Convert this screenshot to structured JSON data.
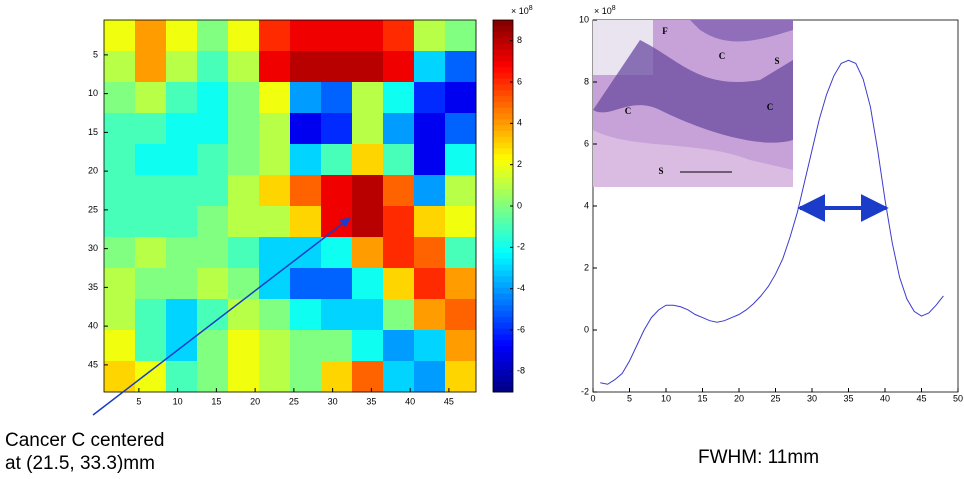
{
  "chart_data": [
    {
      "type": "heatmap",
      "xlim": [
        0.5,
        48.5
      ],
      "ylim": [
        48.5,
        0.5
      ],
      "xticks": [
        5,
        10,
        15,
        20,
        25,
        30,
        35,
        40,
        45
      ],
      "yticks": [
        5,
        10,
        15,
        20,
        25,
        30,
        35,
        40,
        45
      ],
      "z": [
        [
          2,
          4,
          2,
          0,
          2,
          6,
          7,
          7,
          7,
          6,
          1,
          0
        ],
        [
          1,
          4,
          1,
          -1,
          1,
          7,
          8,
          8,
          8,
          7,
          -3,
          -5
        ],
        [
          0,
          1,
          -1,
          -2,
          0,
          2,
          -4,
          -5,
          1,
          -2,
          -6,
          -7
        ],
        [
          -1,
          -1,
          -2,
          -2,
          0,
          1,
          -7,
          -6,
          1,
          -4,
          -7,
          -5
        ],
        [
          -1,
          -2,
          -2,
          -1,
          0,
          1,
          -3,
          -1,
          3,
          -1,
          -7,
          -2
        ],
        [
          -1,
          -1,
          -1,
          -1,
          1,
          3,
          5,
          7,
          8,
          5,
          -4,
          1
        ],
        [
          -1,
          -1,
          -1,
          0,
          1,
          1,
          3,
          7,
          8,
          6,
          3,
          2
        ],
        [
          0,
          1,
          0,
          0,
          -1,
          -3,
          -3,
          -2,
          4,
          6,
          5,
          -1
        ],
        [
          1,
          0,
          0,
          1,
          0,
          -3,
          -5,
          -5,
          -2,
          3,
          6,
          4
        ],
        [
          1,
          -1,
          -3,
          -1,
          1,
          0,
          -2,
          -3,
          -3,
          0,
          4,
          5
        ],
        [
          2,
          -1,
          -3,
          0,
          2,
          1,
          0,
          0,
          -2,
          -4,
          -3,
          4
        ],
        [
          3,
          2,
          -1,
          0,
          2,
          1,
          0,
          3,
          5,
          -3,
          -4,
          3
        ]
      ],
      "clim": [
        -9,
        9
      ],
      "colorbar_ticks": [
        -8,
        -6,
        -4,
        -2,
        0,
        2,
        4,
        6,
        8
      ],
      "multiplier": "× 10",
      "multiplier_power": "8",
      "annotation": [
        "Cancer C centered",
        "at (21.5, 33.3)mm"
      ]
    },
    {
      "type": "line",
      "xlim": [
        0,
        50
      ],
      "ylim": [
        -2,
        10
      ],
      "xticks": [
        0,
        5,
        10,
        15,
        20,
        25,
        30,
        35,
        40,
        45,
        50
      ],
      "yticks": [
        -2,
        0,
        2,
        4,
        6,
        8,
        10
      ],
      "multiplier": "× 10",
      "multiplier_power": "8",
      "color": "#3b3bd0",
      "x": [
        1,
        2,
        3,
        4,
        5,
        6,
        7,
        8,
        9,
        10,
        11,
        12,
        13,
        14,
        15,
        16,
        17,
        18,
        19,
        20,
        21,
        22,
        23,
        24,
        25,
        26,
        27,
        28,
        29,
        30,
        31,
        32,
        33,
        34,
        35,
        36,
        37,
        38,
        39,
        40,
        41,
        42,
        43,
        44,
        45,
        46,
        47,
        48
      ],
      "values": [
        -1.7,
        -1.75,
        -1.6,
        -1.4,
        -1.0,
        -0.5,
        0.0,
        0.4,
        0.65,
        0.8,
        0.8,
        0.75,
        0.65,
        0.5,
        0.4,
        0.3,
        0.25,
        0.3,
        0.4,
        0.5,
        0.65,
        0.85,
        1.1,
        1.4,
        1.8,
        2.3,
        3.0,
        3.8,
        4.8,
        5.8,
        6.8,
        7.6,
        8.2,
        8.6,
        8.7,
        8.6,
        8.1,
        7.2,
        5.8,
        4.2,
        2.8,
        1.7,
        1.0,
        0.6,
        0.45,
        0.55,
        0.8,
        1.1
      ],
      "inset_labels": [
        "F",
        "C",
        "S",
        "C",
        "C",
        "S"
      ],
      "annotation": "FWHM:  11mm"
    }
  ]
}
